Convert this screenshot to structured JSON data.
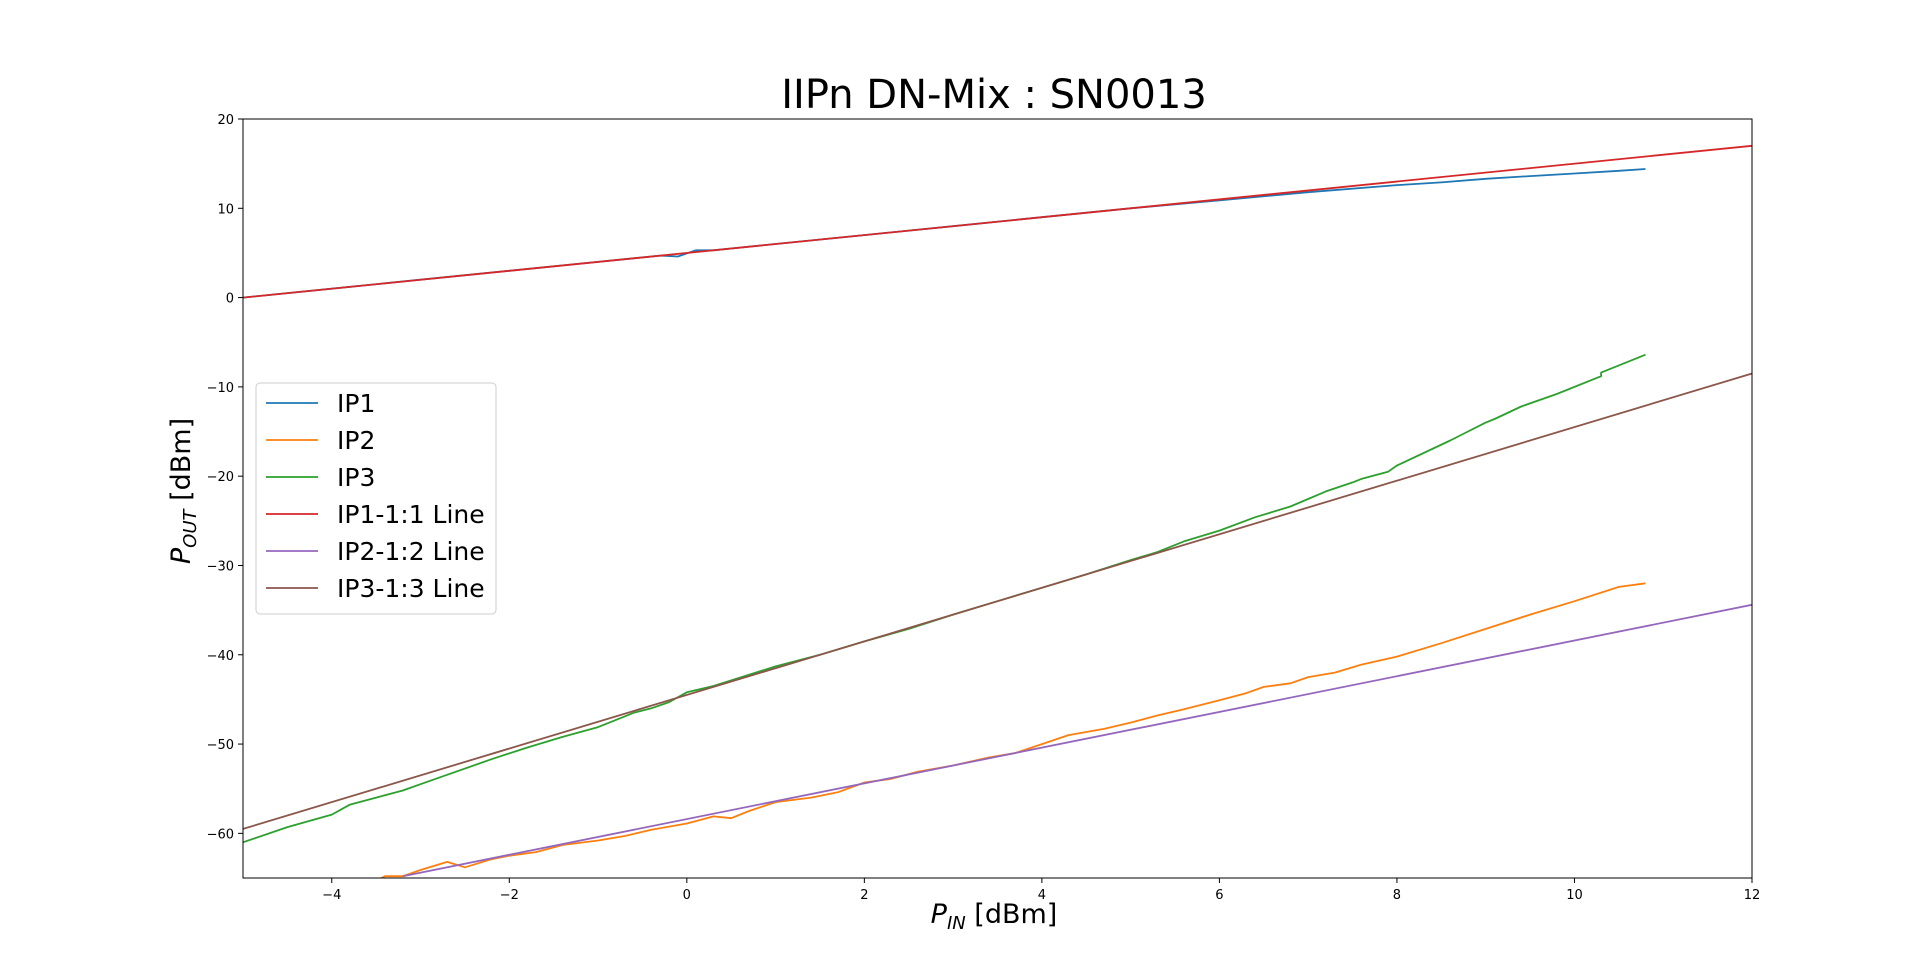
{
  "chart_data": {
    "type": "line",
    "title": "IIPn DN-Mix : SN0013",
    "xlabel": {
      "main": "P",
      "sub": "IN",
      "unit": " [dBm]"
    },
    "ylabel": {
      "main": "P",
      "sub": "OUT",
      "unit": " [dBm]"
    },
    "xlim": [
      -5,
      12
    ],
    "ylim": [
      -65,
      20
    ],
    "xticks": [
      -4,
      -2,
      0,
      2,
      4,
      6,
      8,
      10,
      12
    ],
    "yticks": [
      -60,
      -50,
      -40,
      -30,
      -20,
      -10,
      0,
      10,
      20
    ],
    "grid": false,
    "legend_position": "center-left",
    "series": [
      {
        "name": "IP1",
        "color": "#1f77b4",
        "x": [
          -5,
          -4,
          -3,
          -2,
          -1,
          -0.6,
          -0.3,
          -0.1,
          0.1,
          0.3,
          1,
          2,
          3,
          4,
          5,
          6,
          7,
          8,
          8.5,
          9,
          9.5,
          10,
          10.5,
          10.8
        ],
        "y": [
          0,
          1,
          2,
          3,
          4,
          4.4,
          4.7,
          4.6,
          5.3,
          5.3,
          6,
          7,
          8,
          9,
          10,
          10.9,
          11.8,
          12.6,
          12.9,
          13.3,
          13.6,
          13.9,
          14.2,
          14.4
        ]
      },
      {
        "name": "IP2",
        "color": "#ff7f0e",
        "x": [
          -3.5,
          -3.4,
          -3.2,
          -3.0,
          -2.7,
          -2.5,
          -2.2,
          -2.0,
          -1.7,
          -1.4,
          -1.0,
          -0.7,
          -0.4,
          0,
          0.3,
          0.5,
          0.7,
          1.0,
          1.4,
          1.7,
          2.0,
          2.3,
          2.6,
          3.0,
          3.4,
          3.7,
          4.0,
          4.3,
          4.7,
          5.0,
          5.3,
          5.6,
          6.0,
          6.3,
          6.5,
          6.8,
          7.0,
          7.3,
          7.6,
          8.0,
          8.5,
          9.0,
          9.5,
          10.0,
          10.5,
          10.8
        ],
        "y": [
          -65.3,
          -64.8,
          -64.8,
          -64.1,
          -63.2,
          -63.8,
          -62.9,
          -62.5,
          -62.1,
          -61.3,
          -60.8,
          -60.3,
          -59.6,
          -58.9,
          -58.1,
          -58.3,
          -57.5,
          -56.5,
          -56.0,
          -55.4,
          -54.3,
          -53.9,
          -53.1,
          -52.4,
          -51.5,
          -51.0,
          -50.0,
          -49.0,
          -48.3,
          -47.6,
          -46.8,
          -46.1,
          -45.1,
          -44.3,
          -43.6,
          -43.2,
          -42.5,
          -42.0,
          -41.1,
          -40.2,
          -38.7,
          -37.1,
          -35.5,
          -34.0,
          -32.4,
          -32.0
        ]
      },
      {
        "name": "IP3",
        "color": "#2ca02c",
        "x": [
          -5,
          -4.5,
          -4,
          -3.8,
          -3.2,
          -3.0,
          -2.6,
          -2.2,
          -1.8,
          -1.4,
          -1.0,
          -0.7,
          -0.6,
          -0.4,
          -0.2,
          0,
          0.3,
          1.0,
          1.5,
          2.0,
          2.5,
          3.0,
          3.5,
          4.0,
          4.5,
          5.0,
          5.3,
          5.6,
          6.0,
          6.4,
          6.8,
          7.2,
          7.5,
          7.6,
          7.9,
          8.0,
          8.6,
          8.8,
          9.0,
          9.1,
          9.4,
          9.8,
          10.3,
          10.3,
          10.8
        ],
        "y": [
          -61,
          -59.3,
          -57.9,
          -56.8,
          -55.2,
          -54.5,
          -53.1,
          -51.7,
          -50.4,
          -49.2,
          -48.1,
          -46.9,
          -46.5,
          -46.0,
          -45.3,
          -44.2,
          -43.5,
          -41.3,
          -40.0,
          -38.5,
          -37.1,
          -35.5,
          -34.0,
          -32.5,
          -31.0,
          -29.4,
          -28.5,
          -27.3,
          -26.1,
          -24.6,
          -23.4,
          -21.7,
          -20.7,
          -20.3,
          -19.5,
          -18.8,
          -16.0,
          -15.0,
          -14.0,
          -13.6,
          -12.2,
          -10.8,
          -8.8,
          -8.4,
          -6.4
        ]
      },
      {
        "name": "IP1-1:1 Line",
        "color": "#d62728",
        "x": [
          -5,
          12
        ],
        "y": [
          0,
          17
        ]
      },
      {
        "name": "IP2-1:2 Line",
        "color": "#9467bd",
        "x": [
          -3.2,
          12
        ],
        "y": [
          -64.8,
          -34.4
        ]
      },
      {
        "name": "IP3-1:3 Line",
        "color": "#8c564b",
        "x": [
          -5,
          12
        ],
        "y": [
          -59.5,
          -8.5
        ]
      }
    ]
  }
}
